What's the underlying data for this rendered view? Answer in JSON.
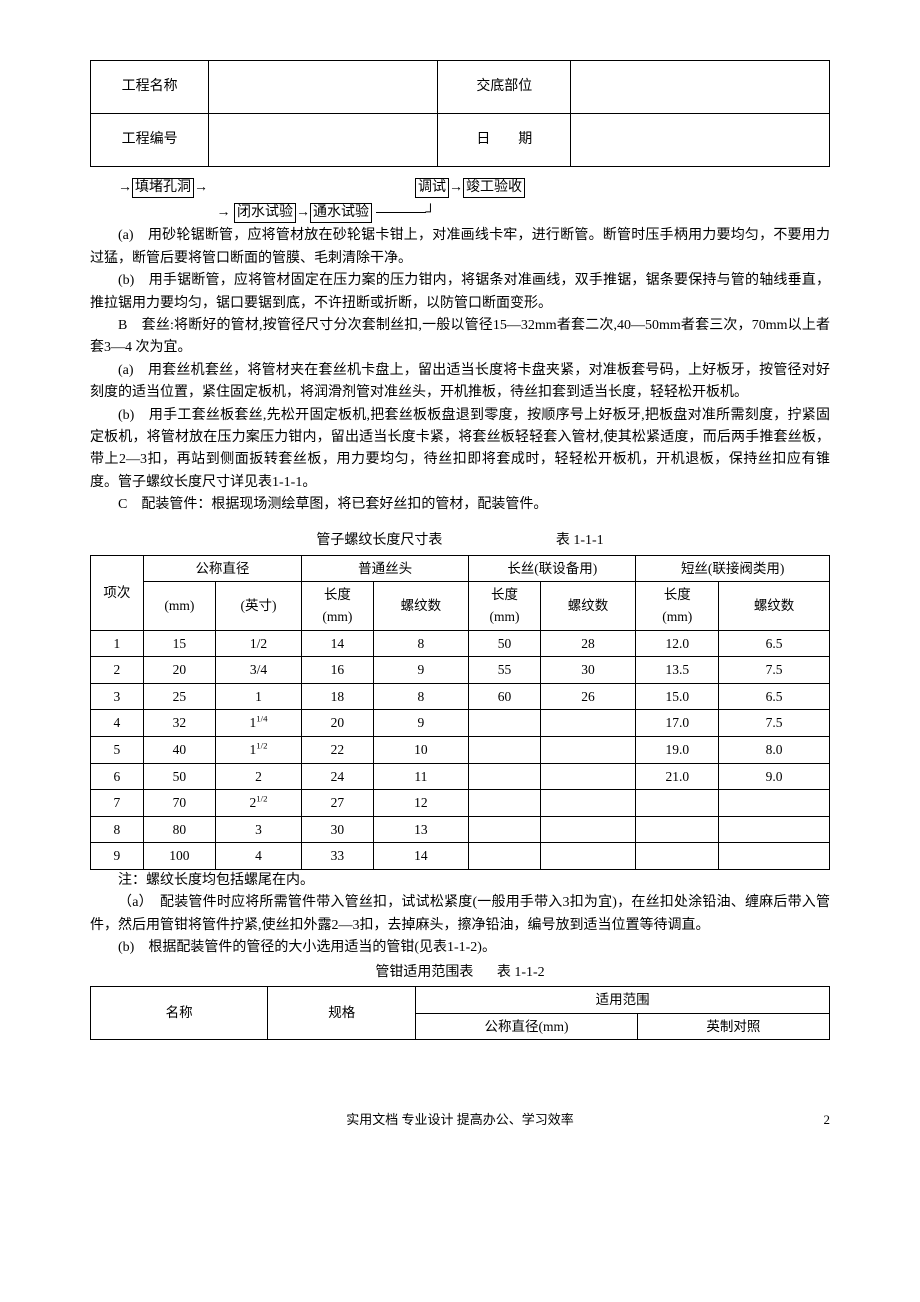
{
  "header": {
    "row1_label1": "工程名称",
    "row1_val1": "",
    "row1_label2": "交底部位",
    "row1_val2": "",
    "row2_label1": "工程编号",
    "row2_val1": "",
    "row2_label2": "日　　期",
    "row2_val2": ""
  },
  "flow": {
    "line1_arrow1": "→",
    "line1_box1": "填堵孔洞",
    "line1_arrow2": "→",
    "line1_box2": "调试",
    "line1_arrow3": "→",
    "line1_box3": "竣工验收",
    "line2_arrow1": "→",
    "line2_box1": "闭水试验",
    "line2_arrow2": "→",
    "line2_box2": "通水试验"
  },
  "paras": {
    "p1": "(a)　用砂轮锯断管，应将管材放在砂轮锯卡钳上，对准画线卡牢，进行断管。断管时压手柄用力要均匀，不要用力过猛，断管后要将管口断面的管膜、毛刺清除干净。",
    "p2": "(b)　用手锯断管，应将管材固定在压力案的压力钳内，将锯条对准画线，双手推锯，锯条要保持与管的轴线垂直，推拉锯用力要均匀，锯口要锯到底，不许扭断或折断，以防管口断面变形。",
    "p3": "B　套丝:将断好的管材,按管径尺寸分次套制丝扣,一般以管径15—32mm者套二次,40—50mm者套三次，70mm以上者套3—4 次为宜。",
    "p4": "(a)　用套丝机套丝，将管材夹在套丝机卡盘上，留出适当长度将卡盘夹紧，对准板套号码，上好板牙，按管径对好刻度的适当位置，紧住固定板机，将润滑剂管对准丝头，开机推板，待丝扣套到适当长度，轻轻松开板机。",
    "p5": "(b)　用手工套丝板套丝,先松开固定板机,把套丝板板盘退到零度，按顺序号上好板牙,把板盘对准所需刻度，拧紧固定板机，将管材放在压力案压力钳内，留出适当长度卡紧，将套丝板轻轻套入管材,使其松紧适度，而后两手推套丝板，带上2—3扣，再站到侧面扳转套丝板，用力要均匀，待丝扣即将套成时，轻轻松开板机，开机退板，保持丝扣应有锥度。管子螺纹长度尺寸详见表1-1-1。",
    "p6": "C　配装管件：根据现场测绘草图，将已套好丝扣的管材，配装管件。"
  },
  "table1": {
    "title_left": "管子螺纹长度尺寸表",
    "title_right": "表 1-1-1",
    "h_item": "项次",
    "h_nom": "公称直径",
    "h_norm": "普通丝头",
    "h_long": "长丝(联设备用)",
    "h_short": "短丝(联接阀类用)",
    "h_mm": "(mm)",
    "h_in": "(英寸)",
    "h_len": "长度(mm)",
    "h_thr": "螺纹数",
    "rows": [
      {
        "n": "1",
        "mm": "15",
        "in": "1/2",
        "nl": "14",
        "nt": "8",
        "ll": "50",
        "lt": "28",
        "sl": "12.0",
        "st": "6.5"
      },
      {
        "n": "2",
        "mm": "20",
        "in": "3/4",
        "nl": "16",
        "nt": "9",
        "ll": "55",
        "lt": "30",
        "sl": "13.5",
        "st": "7.5"
      },
      {
        "n": "3",
        "mm": "25",
        "in": "1",
        "nl": "18",
        "nt": "8",
        "ll": "60",
        "lt": "26",
        "sl": "15.0",
        "st": "6.5"
      },
      {
        "n": "4",
        "mm": "32",
        "in": "1",
        "in_sup": "1/4",
        "nl": "20",
        "nt": "9",
        "ll": "",
        "lt": "",
        "sl": "17.0",
        "st": "7.5"
      },
      {
        "n": "5",
        "mm": "40",
        "in": "1",
        "in_sup": "1/2",
        "nl": "22",
        "nt": "10",
        "ll": "",
        "lt": "",
        "sl": "19.0",
        "st": "8.0"
      },
      {
        "n": "6",
        "mm": "50",
        "in": "2",
        "nl": "24",
        "nt": "11",
        "ll": "",
        "lt": "",
        "sl": "21.0",
        "st": "9.0"
      },
      {
        "n": "7",
        "mm": "70",
        "in": "2",
        "in_sup": "1/2",
        "nl": "27",
        "nt": "12",
        "ll": "",
        "lt": "",
        "sl": "",
        "st": ""
      },
      {
        "n": "8",
        "mm": "80",
        "in": "3",
        "nl": "30",
        "nt": "13",
        "ll": "",
        "lt": "",
        "sl": "",
        "st": ""
      },
      {
        "n": "9",
        "mm": "100",
        "in": "4",
        "nl": "33",
        "nt": "14",
        "ll": "",
        "lt": "",
        "sl": "",
        "st": ""
      }
    ],
    "note": "注：螺纹长度均包括螺尾在内。"
  },
  "after_table": {
    "p1": "（a）　配装管件时应将所需管件带入管丝扣，试试松紧度(一般用手带入3扣为宜)，在丝扣处涂铅油、缠麻后带入管件，然后用管钳将管件拧紧,使丝扣外露2—3扣，去掉麻头，擦净铅油，编号放到适当位置等待调直。",
    "p2": "(b)　根据配装管件的管径的大小选用适当的管钳(见表1-1-2)。"
  },
  "table2": {
    "title_left": "管钳适用范围表",
    "title_right": "表 1-1-2",
    "h_name": "名称",
    "h_spec": "规格",
    "h_range": "适用范围",
    "h_nom": "公称直径(mm)",
    "h_imp": "英制对照"
  },
  "footer": {
    "text": "实用文档 专业设计 提高办公、学习效率",
    "page": "2"
  }
}
